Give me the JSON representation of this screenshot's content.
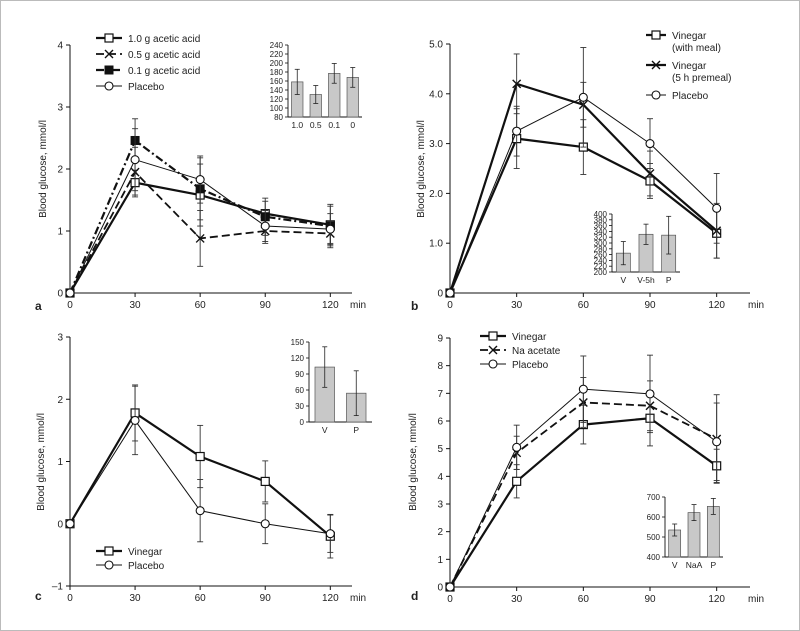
{
  "chart_data": [
    {
      "panel": "a",
      "type": "line",
      "ylabel": "Blood glucose, mmol/l",
      "xunit": "min",
      "x": [
        0,
        30,
        60,
        90,
        120
      ],
      "xticks": [
        "0",
        "30",
        "60",
        "90",
        "120"
      ],
      "ylim": [
        0,
        4
      ],
      "yticks": [
        "0",
        "1",
        "2",
        "3",
        "4"
      ],
      "grid": false,
      "legend": "top-left",
      "series": [
        {
          "name": "1.0 g acetic acid",
          "marker": "square-open",
          "line": "solid-bold",
          "values": [
            0,
            1.78,
            1.58,
            1.28,
            1.1
          ],
          "errors": [
            0,
            0.2,
            0.5,
            0.2,
            0.3
          ]
        },
        {
          "name": "0.5 g acetic acid",
          "marker": "cross",
          "line": "dash",
          "values": [
            0,
            1.95,
            0.88,
            1.0,
            0.96
          ],
          "errors": [
            0,
            0.4,
            0.45,
            0.2,
            0.2
          ]
        },
        {
          "name": "0.1 g acetic acid",
          "marker": "square-filled",
          "line": "dashdot-bold",
          "values": [
            0,
            2.46,
            1.68,
            1.23,
            1.08
          ],
          "errors": [
            0,
            0.35,
            0.5,
            0.3,
            0.35
          ]
        },
        {
          "name": "Placebo",
          "marker": "circle-open",
          "line": "solid-thin",
          "values": [
            0,
            2.15,
            1.83,
            1.08,
            1.03
          ],
          "errors": [
            0,
            0.5,
            0.38,
            0.25,
            0.25
          ]
        }
      ],
      "inset": {
        "type": "bar",
        "categories": [
          "1.0",
          "0.5",
          "0.1",
          "0"
        ],
        "values": [
          158,
          130,
          177,
          168
        ],
        "errors": [
          28,
          20,
          22,
          22
        ],
        "ylim": [
          80,
          240
        ],
        "yticks": [
          "80",
          "100",
          "120",
          "140",
          "160",
          "180",
          "200",
          "220",
          "240"
        ]
      }
    },
    {
      "panel": "b",
      "type": "line",
      "ylabel": "Blood glucose, mmol/l",
      "xunit": "min",
      "x": [
        0,
        30,
        60,
        90,
        120
      ],
      "xticks": [
        "0",
        "30",
        "60",
        "90",
        "120"
      ],
      "ylim": [
        0,
        5
      ],
      "yticks": [
        "0",
        "1.0",
        "2.0",
        "3.0",
        "4.0",
        "5.0"
      ],
      "grid": false,
      "legend": "top-right",
      "series": [
        {
          "name": "Vinegar (with meal)",
          "marker": "square-open",
          "line": "solid-bold",
          "values": [
            0,
            3.1,
            2.93,
            2.25,
            1.2
          ],
          "errors": [
            0,
            0.6,
            0.55,
            0.35,
            0.5
          ]
        },
        {
          "name": "Vinegar (5 h premeal)",
          "marker": "cross",
          "line": "solid-bold",
          "values": [
            0,
            4.2,
            3.78,
            2.4,
            1.25
          ],
          "errors": [
            0,
            0.6,
            0.45,
            0.45,
            0.55
          ]
        },
        {
          "name": "Placebo",
          "marker": "circle-open",
          "line": "solid-thin",
          "values": [
            0,
            3.25,
            3.93,
            3.0,
            1.7
          ],
          "errors": [
            0,
            0.5,
            1.0,
            0.5,
            0.7
          ]
        }
      ],
      "inset": {
        "type": "bar",
        "categories": [
          "V",
          "V-5h",
          "P"
        ],
        "values": [
          265,
          330,
          327
        ],
        "errors": [
          40,
          35,
          65
        ],
        "ylim": [
          200,
          400
        ],
        "yticks": [
          "200",
          "220",
          "240",
          "260",
          "280",
          "300",
          "320",
          "340",
          "360",
          "380",
          "400"
        ]
      }
    },
    {
      "panel": "c",
      "type": "line",
      "ylabel": "Blood glucose, mmol/l",
      "xunit": "min",
      "x": [
        0,
        30,
        60,
        90,
        120
      ],
      "xticks": [
        "0",
        "30",
        "60",
        "90",
        "120"
      ],
      "ylim": [
        -1,
        3
      ],
      "yticks": [
        "–1",
        "0",
        "1",
        "2",
        "3"
      ],
      "grid": false,
      "legend": "bottom-left",
      "series": [
        {
          "name": "Vinegar",
          "marker": "square-open",
          "line": "solid-bold",
          "values": [
            0,
            1.78,
            1.08,
            0.68,
            -0.2
          ],
          "errors": [
            0,
            0.45,
            0.5,
            0.33,
            0.35
          ]
        },
        {
          "name": "Placebo",
          "marker": "circle-open",
          "line": "solid-thin",
          "values": [
            0,
            1.66,
            0.21,
            0.0,
            -0.16
          ],
          "errors": [
            0,
            0.55,
            0.5,
            0.32,
            0.3
          ]
        }
      ],
      "inset": {
        "type": "bar",
        "categories": [
          "V",
          "P"
        ],
        "values": [
          103,
          54
        ],
        "errors": [
          38,
          42
        ],
        "ylim": [
          0,
          150
        ],
        "yticks": [
          "0",
          "30",
          "60",
          "90",
          "120",
          "150"
        ]
      }
    },
    {
      "panel": "d",
      "type": "line",
      "ylabel": "Blood glucose, mmol/l",
      "xunit": "min",
      "x": [
        0,
        30,
        60,
        90,
        120
      ],
      "xticks": [
        "0",
        "30",
        "60",
        "90",
        "120"
      ],
      "ylim": [
        0,
        9
      ],
      "yticks": [
        "0",
        "1",
        "2",
        "3",
        "4",
        "5",
        "6",
        "7",
        "8",
        "9"
      ],
      "grid": false,
      "legend": "top-left",
      "series": [
        {
          "name": "Vinegar",
          "marker": "square-open",
          "line": "solid-bold",
          "values": [
            0,
            3.82,
            5.87,
            6.1,
            4.38
          ],
          "errors": [
            0,
            0.6,
            0.7,
            1.0,
            0.6
          ]
        },
        {
          "name": "Na acetate",
          "marker": "cross",
          "line": "dash",
          "values": [
            0,
            4.85,
            6.67,
            6.55,
            5.35
          ],
          "errors": [
            0,
            0.6,
            0.9,
            0.9,
            1.6
          ]
        },
        {
          "name": "Placebo",
          "marker": "circle-open",
          "line": "solid-thin",
          "values": [
            0,
            5.05,
            7.15,
            6.98,
            5.25
          ],
          "errors": [
            0,
            0.8,
            1.2,
            1.4,
            1.4
          ]
        }
      ],
      "inset": {
        "type": "bar",
        "categories": [
          "V",
          "NaA",
          "P"
        ],
        "values": [
          535,
          622,
          653
        ],
        "errors": [
          30,
          40,
          40
        ],
        "ylim": [
          400,
          700
        ],
        "yticks": [
          "400",
          "500",
          "600",
          "700"
        ]
      }
    }
  ]
}
